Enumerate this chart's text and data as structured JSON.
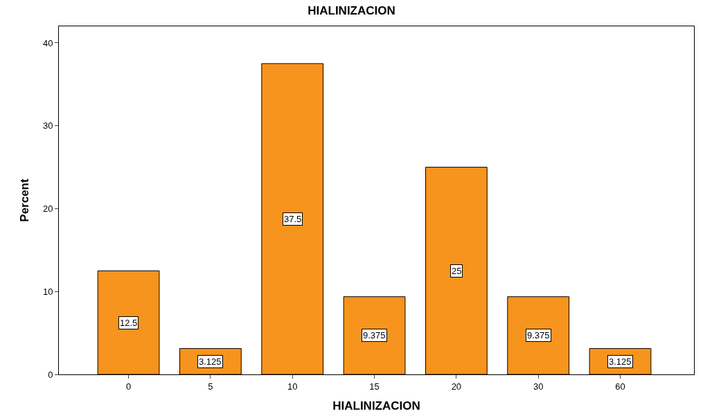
{
  "chart_data": {
    "type": "bar",
    "title": "HIALINIZACION",
    "xlabel": "HIALINIZACION",
    "ylabel": "Percent",
    "categories": [
      "0",
      "5",
      "10",
      "15",
      "20",
      "30",
      "60"
    ],
    "values": [
      12.5,
      3.125,
      37.5,
      9.375,
      25,
      9.375,
      3.125
    ],
    "color": "#f7941d",
    "ylim": [
      0,
      42
    ],
    "yticks": [
      0,
      10,
      20,
      30,
      40
    ],
    "data_labels": true
  }
}
